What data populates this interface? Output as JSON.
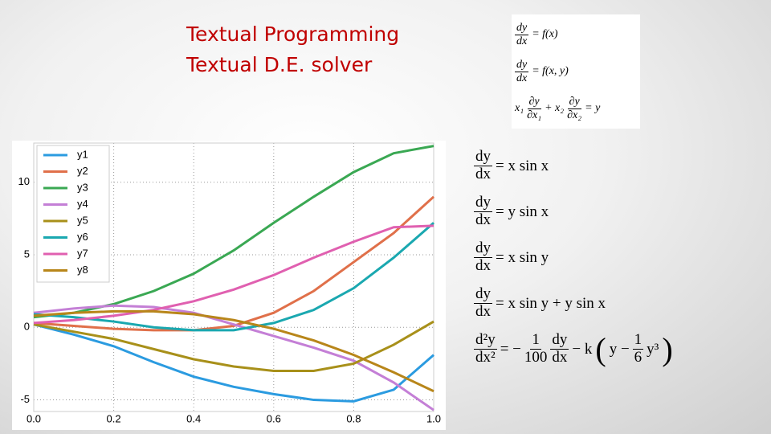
{
  "slide": {
    "title_lines": [
      "Textual Programming",
      "Textual D.E. solver"
    ]
  },
  "equations_top": [
    [
      {
        "num": "dy",
        "den": "dx"
      },
      {
        "text": "= f(x)"
      }
    ],
    [
      {
        "num": "dy",
        "den": "dx"
      },
      {
        "text": "= f(x, y)"
      }
    ],
    [
      {
        "text": "x₁"
      },
      {
        "num": "∂y",
        "den": "∂x₁"
      },
      {
        "text": "+ x₂"
      },
      {
        "num": "∂y",
        "den": "∂x₂"
      },
      {
        "text": "= y"
      }
    ]
  ],
  "equations_bottom": [
    [
      {
        "num": "dy",
        "den": "dx"
      },
      {
        "text": "= x sin x"
      }
    ],
    [
      {
        "num": "dy",
        "den": "dx"
      },
      {
        "text": "= y sin x"
      }
    ],
    [
      {
        "num": "dy",
        "den": "dx"
      },
      {
        "text": "= x sin y"
      }
    ],
    [
      {
        "num": "dy",
        "den": "dx"
      },
      {
        "text": "= x sin y + y sin x"
      }
    ],
    [
      {
        "num": "d²y",
        "den": "dx²"
      },
      {
        "text": "= −"
      },
      {
        "num": "1",
        "den": "100"
      },
      {
        "num": "dy",
        "den": "dx"
      },
      {
        "text": "− k"
      },
      {
        "text": "("
      },
      {
        "text": "y −"
      },
      {
        "num": "1",
        "den": "6"
      },
      {
        "text": "y³"
      },
      {
        "text": ")"
      }
    ]
  ],
  "chart_data": {
    "type": "line",
    "x": [
      0,
      0.1,
      0.2,
      0.3,
      0.4,
      0.5,
      0.6,
      0.7,
      0.8,
      0.9,
      1.0
    ],
    "series": [
      {
        "name": "y1",
        "color": "#2b9be0",
        "values": [
          0.2,
          -0.5,
          -1.3,
          -2.4,
          -3.4,
          -4.1,
          -4.6,
          -5.0,
          -5.1,
          -4.3,
          -1.9
        ]
      },
      {
        "name": "y2",
        "color": "#e0704a",
        "values": [
          0.3,
          0.1,
          -0.1,
          -0.2,
          -0.2,
          0.1,
          1.0,
          2.5,
          4.5,
          6.5,
          9.0
        ]
      },
      {
        "name": "y3",
        "color": "#3aa853",
        "values": [
          0.7,
          1.0,
          1.6,
          2.5,
          3.7,
          5.3,
          7.2,
          9.0,
          10.7,
          12.0,
          12.5
        ]
      },
      {
        "name": "y4",
        "color": "#c47fd6",
        "values": [
          1.0,
          1.3,
          1.5,
          1.4,
          1.0,
          0.2,
          -0.6,
          -1.4,
          -2.3,
          -3.8,
          -5.7
        ]
      },
      {
        "name": "y5",
        "color": "#a8901a",
        "values": [
          0.2,
          -0.3,
          -0.8,
          -1.5,
          -2.2,
          -2.7,
          -3.0,
          -3.0,
          -2.5,
          -1.2,
          0.4
        ]
      },
      {
        "name": "y6",
        "color": "#1aa8b0",
        "values": [
          0.9,
          0.7,
          0.4,
          0.0,
          -0.2,
          -0.2,
          0.3,
          1.2,
          2.7,
          4.8,
          7.2
        ]
      },
      {
        "name": "y7",
        "color": "#e060b0",
        "values": [
          0.3,
          0.5,
          0.8,
          1.2,
          1.8,
          2.6,
          3.6,
          4.8,
          5.9,
          6.9,
          7.0
        ]
      },
      {
        "name": "y8",
        "color": "#b8861a",
        "values": [
          0.8,
          1.0,
          1.1,
          1.1,
          0.9,
          0.5,
          -0.1,
          -0.9,
          -1.9,
          -3.1,
          -4.4
        ]
      }
    ],
    "xlim": [
      0,
      1
    ],
    "ylim": [
      -5.8,
      12.7
    ],
    "xticks": [
      {
        "value": 0,
        "label": "0.0"
      },
      {
        "value": 0.2,
        "label": "0.2"
      },
      {
        "value": 0.4,
        "label": "0.4"
      },
      {
        "value": 0.6,
        "label": "0.6"
      },
      {
        "value": 0.8,
        "label": "0.8"
      },
      {
        "value": 1.0,
        "label": "1.0"
      }
    ],
    "yticks": [
      -5,
      0,
      5,
      10
    ],
    "grid": true,
    "legend": "upper left"
  }
}
